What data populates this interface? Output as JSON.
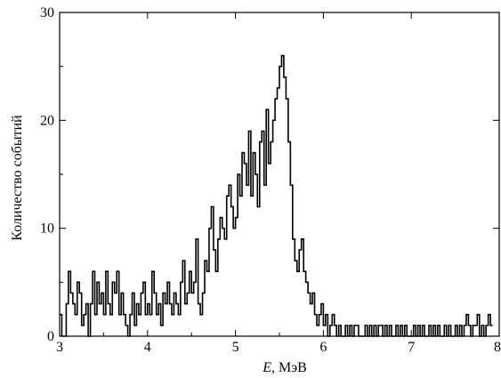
{
  "chart_data": {
    "type": "line",
    "step": true,
    "title": "",
    "xlabel_italic": "E",
    "xlabel_rest": ", МэВ",
    "ylabel": "Количество событий",
    "xlim": [
      3,
      8
    ],
    "ylim": [
      0,
      30
    ],
    "xticks": [
      3,
      4,
      5,
      6,
      7,
      8
    ],
    "yticks": [
      0,
      10,
      20,
      30
    ],
    "grid": false,
    "bin_width": 0.025,
    "x_start": 3.0,
    "counts": [
      2,
      0,
      0,
      3,
      6,
      4,
      3,
      2,
      5,
      4,
      1,
      2,
      3,
      0,
      3,
      6,
      2,
      5,
      3,
      4,
      2,
      6,
      3,
      2,
      5,
      4,
      6,
      2,
      4,
      2,
      1,
      0,
      2,
      4,
      1,
      3,
      2,
      4,
      5,
      2,
      3,
      2,
      6,
      4,
      2,
      3,
      1,
      4,
      3,
      5,
      3,
      2,
      4,
      3,
      2,
      5,
      7,
      3,
      4,
      6,
      4,
      5,
      9,
      3,
      2,
      4,
      7,
      6,
      10,
      12,
      8,
      6,
      9,
      11,
      10,
      9,
      13,
      14,
      12,
      10,
      11,
      15,
      13,
      17,
      16,
      14,
      19,
      13,
      17,
      15,
      12,
      18,
      19,
      14,
      21,
      16,
      18,
      20,
      22,
      23,
      25,
      26,
      24,
      22,
      18,
      14,
      9,
      7,
      6,
      8,
      9,
      6,
      5,
      4,
      3,
      4,
      2,
      1,
      2,
      3,
      1,
      2,
      0,
      1,
      2,
      1,
      0,
      1,
      0,
      0,
      1,
      0,
      1,
      0,
      1,
      1,
      0,
      0,
      0,
      1,
      0,
      1,
      0,
      1,
      0,
      1,
      1,
      0,
      1,
      0,
      1,
      0,
      0,
      1,
      0,
      1,
      0,
      1,
      0,
      0,
      0,
      1,
      0,
      1,
      0,
      1,
      0,
      0,
      1,
      0,
      1,
      0,
      1,
      0,
      0,
      1,
      0,
      1,
      0,
      0,
      1,
      0,
      1,
      0,
      1,
      2,
      1,
      0,
      1,
      1,
      2,
      0,
      1,
      0,
      1,
      2,
      1
    ]
  }
}
